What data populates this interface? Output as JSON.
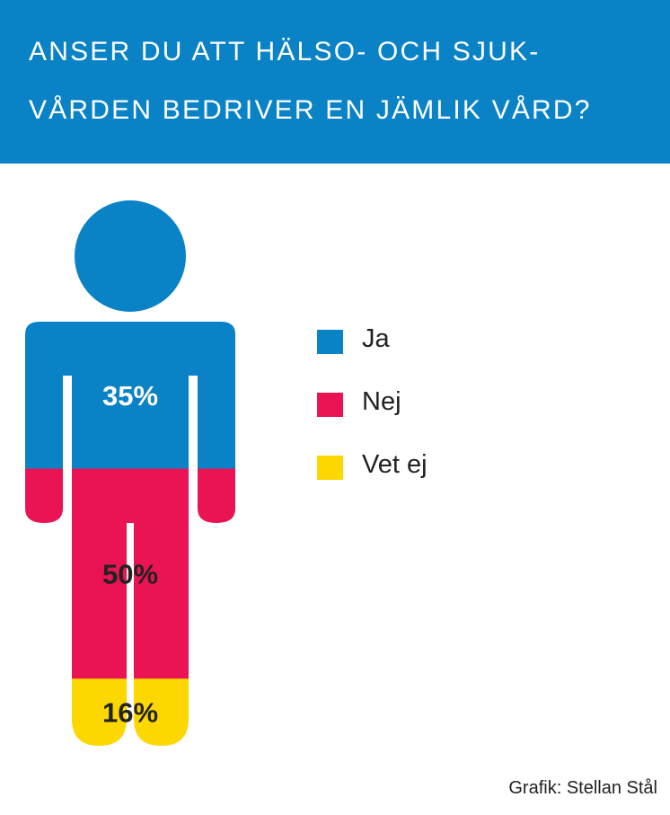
{
  "title_lines": [
    "ANSER DU ATT HÄLSO- OCH SJUK-",
    "VÅRDEN BEDRIVER EN JÄMLIK VÅRD?"
  ],
  "credit": "Grafik: Stellan Stål",
  "colors": {
    "header": "#0a82c6",
    "ja": "#0a82c6",
    "nej": "#ea1454",
    "vet_ej": "#fcd700"
  },
  "chart_data": {
    "type": "pictogram",
    "series": [
      {
        "name": "Ja",
        "value": 35,
        "label": "35%",
        "color": "#0a82c6"
      },
      {
        "name": "Nej",
        "value": 50,
        "label": "50%",
        "color": "#ea1454"
      },
      {
        "name": "Vet ej",
        "value": 16,
        "label": "16%",
        "color": "#fcd700"
      }
    ],
    "legend_position": "right"
  }
}
